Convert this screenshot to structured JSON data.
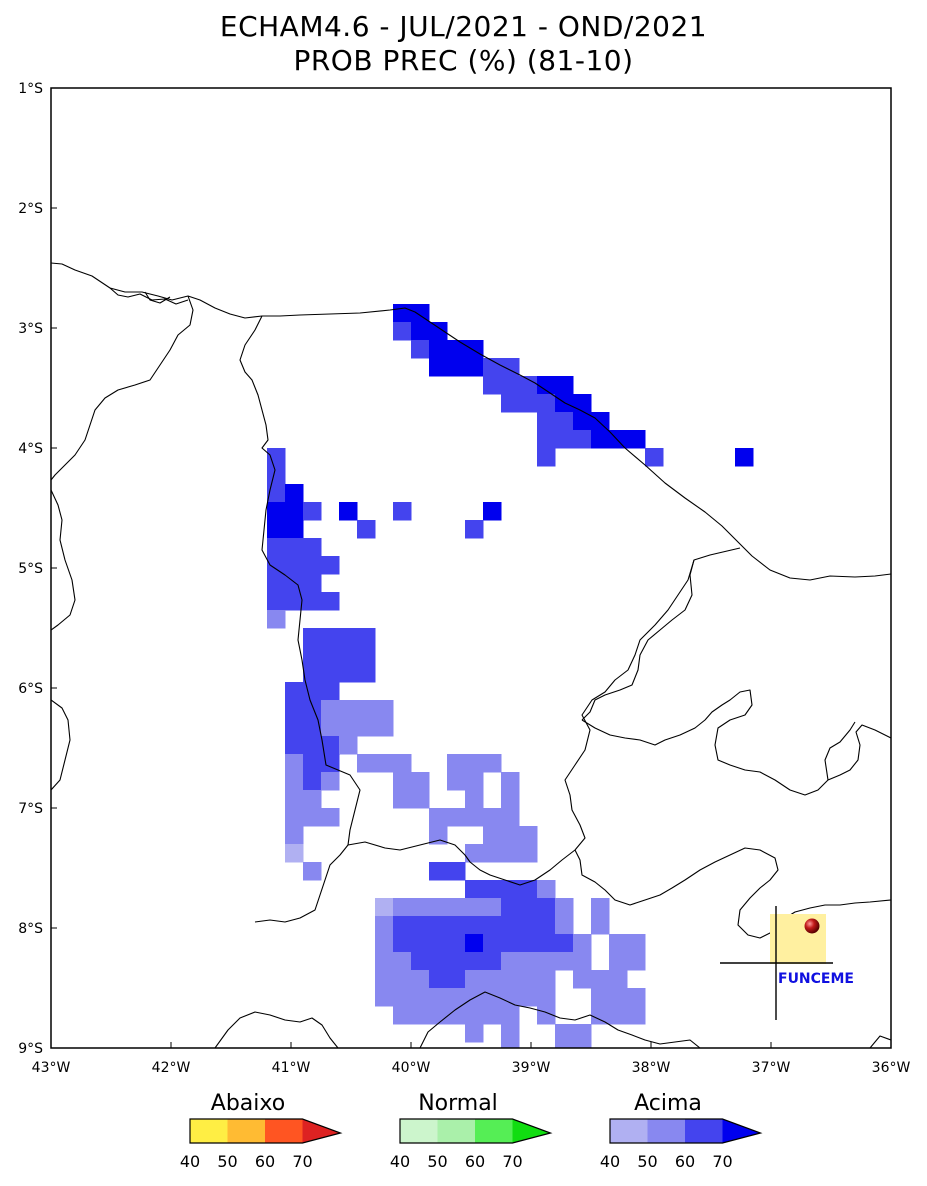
{
  "title_line1": "ECHAM4.6 - JUL/2021 - OND/2021",
  "title_line2": "PROB PREC (%) (81-10)",
  "lat_ticks": [
    "1°S",
    "2°S",
    "3°S",
    "4°S",
    "5°S",
    "6°S",
    "7°S",
    "8°S",
    "9°S"
  ],
  "lon_ticks": [
    "43°W",
    "42°W",
    "41°W",
    "40°W",
    "39°W",
    "38°W",
    "37°W",
    "36°W"
  ],
  "colors": {
    "acima_40": "#b0b0f2",
    "acima_50": "#8888f0",
    "acima_60": "#4444ee",
    "acima_70": "#0000ee",
    "abaixo": [
      "#ffee44",
      "#ffbb33",
      "#ff5522",
      "#dd2222"
    ],
    "normal": [
      "#ccf5cc",
      "#aaf0aa",
      "#55ee55",
      "#11dd11"
    ]
  },
  "legends": [
    {
      "title": "Abaixo",
      "ticks": [
        "40",
        "50",
        "60",
        "70"
      ]
    },
    {
      "title": "Normal",
      "ticks": [
        "40",
        "50",
        "60",
        "70"
      ]
    },
    {
      "title": "Acima",
      "ticks": [
        "40",
        "50",
        "60",
        "70"
      ]
    }
  ],
  "logo": {
    "text": "FUNCEME"
  }
}
